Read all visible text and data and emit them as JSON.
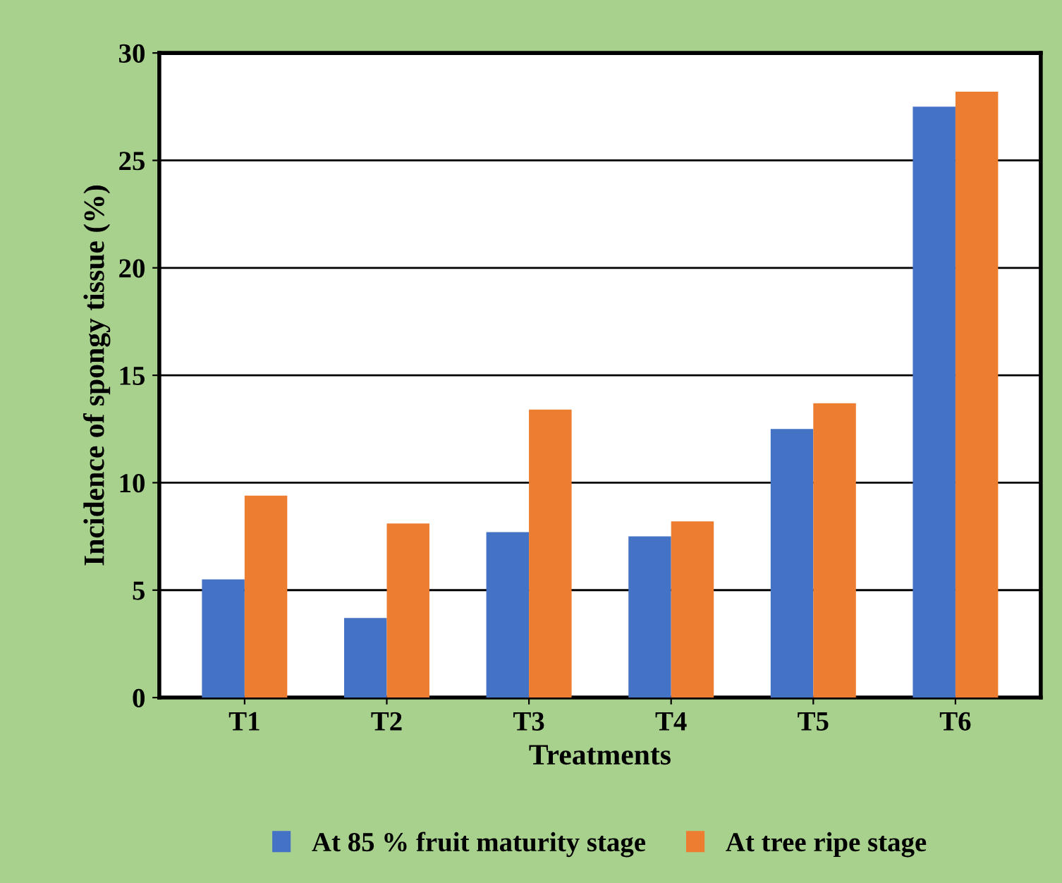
{
  "chart_data": {
    "type": "bar",
    "xlabel": "Treatments",
    "ylabel": "Incidence of spongy tissue (%)",
    "categories": [
      "T1",
      "T2",
      "T3",
      "T4",
      "T5",
      "T6"
    ],
    "series": [
      {
        "name": "At 85 % fruit maturity stage",
        "color": "#4472c4",
        "values": [
          5.5,
          3.7,
          7.7,
          7.5,
          12.5,
          27.5
        ]
      },
      {
        "name": "At tree ripe stage",
        "color": "#ed7d31",
        "values": [
          9.4,
          8.1,
          13.4,
          8.2,
          13.7,
          28.2
        ]
      }
    ],
    "ylim": [
      0,
      30
    ],
    "yticks": [
      0,
      5,
      10,
      15,
      20,
      25,
      30
    ],
    "grid": "y",
    "legend": "bottom"
  }
}
